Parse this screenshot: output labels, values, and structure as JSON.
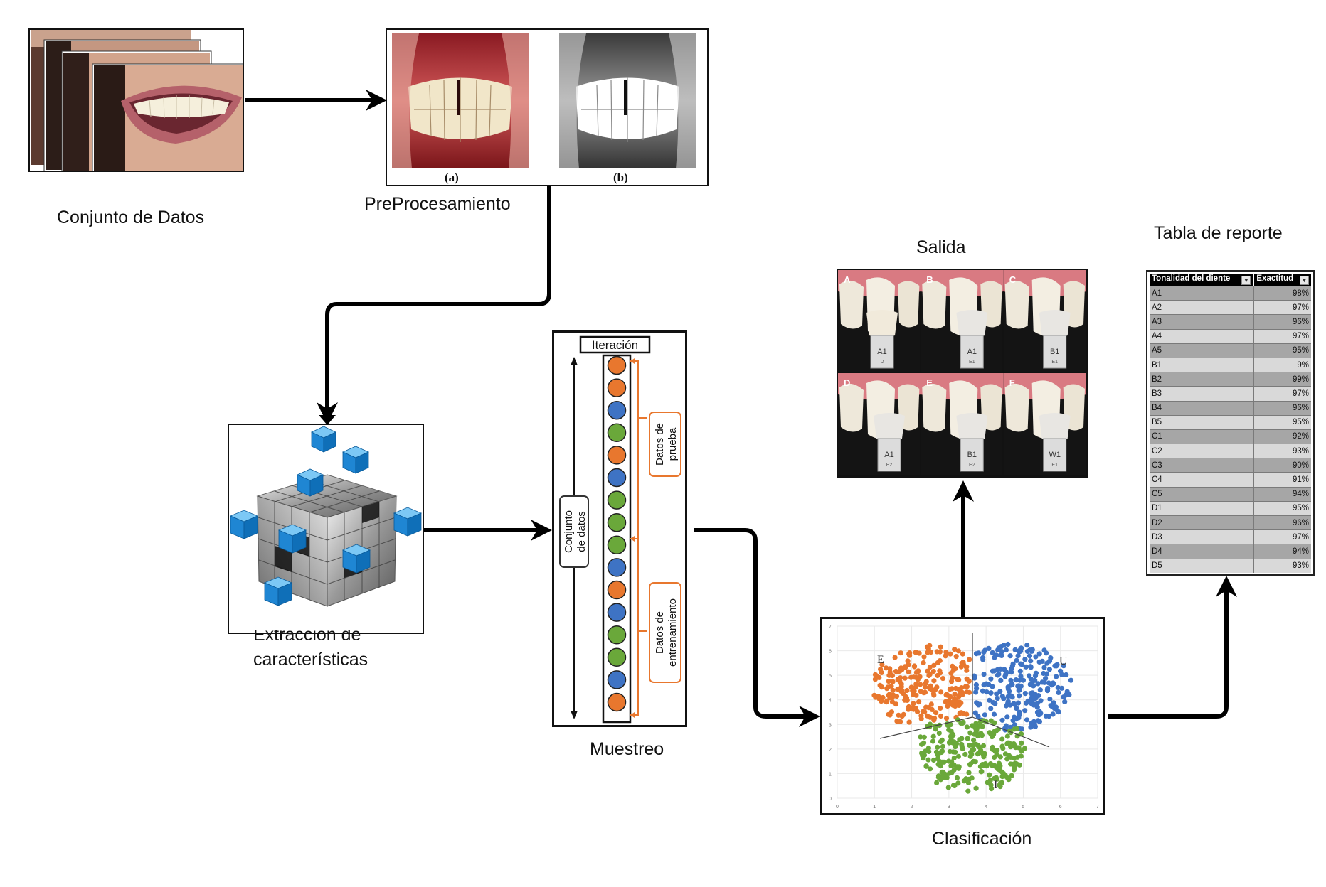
{
  "labels": {
    "conjunto_datos": "Conjunto de Datos",
    "preprocesamiento": "PreProcesamiento",
    "extraccion_line1": "Extracción de",
    "extraccion_line2": "características",
    "muestreo": "Muestreo",
    "clasificacion": "Clasificación",
    "salida": "Salida",
    "tabla_reporte": "Tabla de reporte"
  },
  "preprocessing": {
    "caption_a": "(a)",
    "caption_b": "(b)"
  },
  "sampling": {
    "iteration": "Iteración",
    "dataset_line1": "Conjunto",
    "dataset_line2": "de datos",
    "test_line1": "Datos de",
    "test_line2": "prueba",
    "train_line1": "Datos de",
    "train_line2": "entrenamiento",
    "circle_colors": [
      "orange",
      "orange",
      "blue",
      "green",
      "orange",
      "blue",
      "green",
      "green",
      "green",
      "blue",
      "orange",
      "blue",
      "green",
      "green",
      "blue",
      "orange"
    ]
  },
  "output_panels": [
    "A",
    "B",
    "C",
    "D",
    "E",
    "F"
  ],
  "shade_labels": [
    {
      "big": "A1",
      "small": "D"
    },
    {
      "big": "A1",
      "small": "E1"
    },
    {
      "big": "B1",
      "small": "E1"
    },
    {
      "big": "A1",
      "small": "E2"
    },
    {
      "big": "B1",
      "small": "E2"
    },
    {
      "big": "W1",
      "small": "E1"
    }
  ],
  "classification": {
    "cluster_labels": [
      "E",
      "U",
      "I"
    ],
    "x_ticks": [
      "0",
      "1",
      "2",
      "3",
      "4",
      "5",
      "6",
      "7"
    ],
    "y_ticks": [
      "0",
      "1",
      "2",
      "3",
      "4",
      "5",
      "6",
      "7"
    ]
  },
  "report_table": {
    "headers": [
      "Tonalidad del diente",
      "Exactitud"
    ],
    "rows": [
      [
        "A1",
        "98%"
      ],
      [
        "A2",
        "97%"
      ],
      [
        "A3",
        "96%"
      ],
      [
        "A4",
        "97%"
      ],
      [
        "A5",
        "95%"
      ],
      [
        "B1",
        "9%"
      ],
      [
        "B2",
        "99%"
      ],
      [
        "B3",
        "97%"
      ],
      [
        "B4",
        "96%"
      ],
      [
        "B5",
        "95%"
      ],
      [
        "C1",
        "92%"
      ],
      [
        "C2",
        "93%"
      ],
      [
        "C3",
        "90%"
      ],
      [
        "C4",
        "91%"
      ],
      [
        "C5",
        "94%"
      ],
      [
        "D1",
        "95%"
      ],
      [
        "D2",
        "96%"
      ],
      [
        "D3",
        "97%"
      ],
      [
        "D4",
        "94%"
      ],
      [
        "D5",
        "93%"
      ]
    ]
  },
  "colors": {
    "orange": "#e8772e",
    "blue": "#3e73c4",
    "green": "#6aa83a",
    "cube_blue": "#1e88d6",
    "annotation_orange": "#e8772e"
  }
}
